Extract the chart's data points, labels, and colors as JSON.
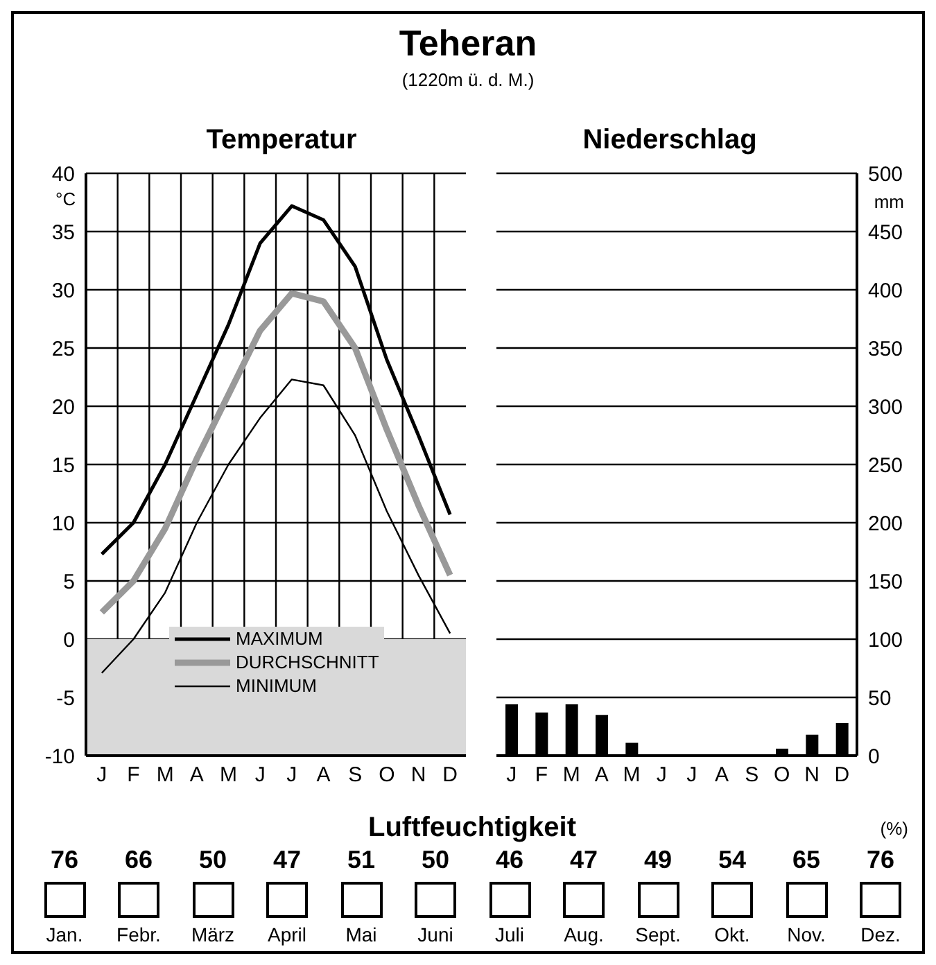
{
  "chart_data": [
    {
      "type": "line",
      "title": "Temperatur",
      "annotations": [
        "Teheran",
        "(1220m ü. d. M.)"
      ],
      "ylabel": "°C",
      "categories": [
        "J",
        "F",
        "M",
        "A",
        "M",
        "J",
        "J",
        "A",
        "S",
        "O",
        "N",
        "D"
      ],
      "series": [
        {
          "name": "MAXIMUM",
          "color": "#000000",
          "values": [
            7.3,
            10,
            15,
            21,
            27,
            34,
            37.2,
            36,
            32,
            24,
            17.5,
            10.7
          ]
        },
        {
          "name": "DURCHSCHNITT",
          "color": "#999999",
          "values": [
            2.3,
            5,
            9.5,
            15.5,
            21,
            26.5,
            29.7,
            29,
            25,
            18,
            11.5,
            5.5
          ]
        },
        {
          "name": "MINIMUM",
          "color": "#000000",
          "values": [
            -2.9,
            0,
            4,
            10,
            15,
            19,
            22.3,
            21.8,
            17.5,
            11,
            5.5,
            0.5
          ]
        }
      ],
      "ylim": [
        -10,
        40
      ],
      "yticks": [
        -10,
        -5,
        0,
        5,
        10,
        15,
        20,
        25,
        30,
        35,
        40
      ],
      "grid": true,
      "marker": "none",
      "legend": "bottom",
      "bands": [
        {
          "axis": "y",
          "from": -10,
          "to": 0,
          "color": "#d9d9d9"
        }
      ]
    },
    {
      "type": "bar",
      "title": "Niederschlag",
      "ylabel": "mm",
      "categories": [
        "J",
        "F",
        "M",
        "A",
        "M",
        "J",
        "J",
        "A",
        "S",
        "O",
        "N",
        "D"
      ],
      "values": [
        44,
        37,
        44,
        35,
        11,
        1,
        1,
        1,
        1,
        6,
        18,
        28
      ],
      "color": "#000000",
      "ylim": [
        0,
        500
      ],
      "yticks": [
        0,
        50,
        100,
        150,
        200,
        250,
        300,
        350,
        400,
        450,
        500
      ],
      "grid": "y"
    },
    {
      "type": "other",
      "title": "Luftfeuchtigkeit",
      "ylabel": "(%)",
      "categories": [
        "Jan.",
        "Febr.",
        "März",
        "April",
        "Mai",
        "Juni",
        "Juli",
        "Aug.",
        "Sept.",
        "Okt.",
        "Nov.",
        "Dez."
      ],
      "values": [
        76,
        66,
        50,
        47,
        51,
        50,
        46,
        47,
        49,
        54,
        65,
        76
      ],
      "data_labels": true
    }
  ]
}
